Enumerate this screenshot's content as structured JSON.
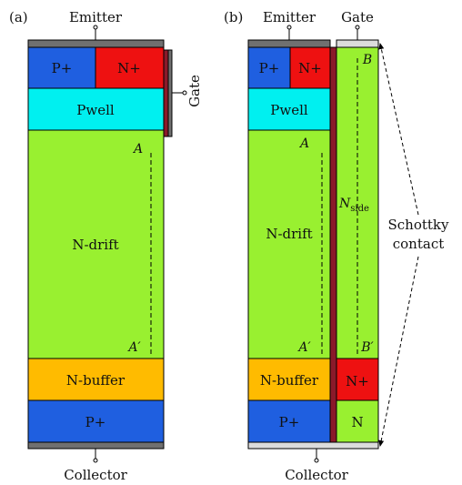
{
  "panel_a": {
    "tag": "(a)",
    "emitter": "Emitter",
    "collector": "Collector",
    "gate": "Gate",
    "p_plus_top": "P+",
    "n_plus_top": "N+",
    "pwell": "Pwell",
    "n_drift": "N-drift",
    "n_buffer": "N-buffer",
    "p_plus_bottom": "P+",
    "point_top": "A",
    "point_bottom": "A′"
  },
  "panel_b": {
    "tag": "(b)",
    "emitter": "Emitter",
    "gate": "Gate",
    "collector": "Collector",
    "p_plus_top": "P+",
    "n_plus_top": "N+",
    "pwell": "Pwell",
    "n_drift": "N-drift",
    "n_buffer": "N-buffer",
    "p_plus_bottom": "P+",
    "n_side_main": "N",
    "n_side_sub": "side",
    "n_plus_side": "N+",
    "n_side_bottom": "N",
    "point_a": "A",
    "point_a_prime": "A′",
    "point_b": "B",
    "point_b_prime": "B′",
    "schottky_line1": "Schottky",
    "schottky_line2": "contact"
  },
  "colors": {
    "p_plus": "#1f5fe0",
    "n_plus": "#ee1111",
    "pwell": "#00f0f0",
    "n_drift": "#99f030",
    "n_buffer": "#ffbb00",
    "metal": "#707070",
    "gate_oxide": "#8a1a2a",
    "schottky_metal": "#dcdcdc"
  }
}
